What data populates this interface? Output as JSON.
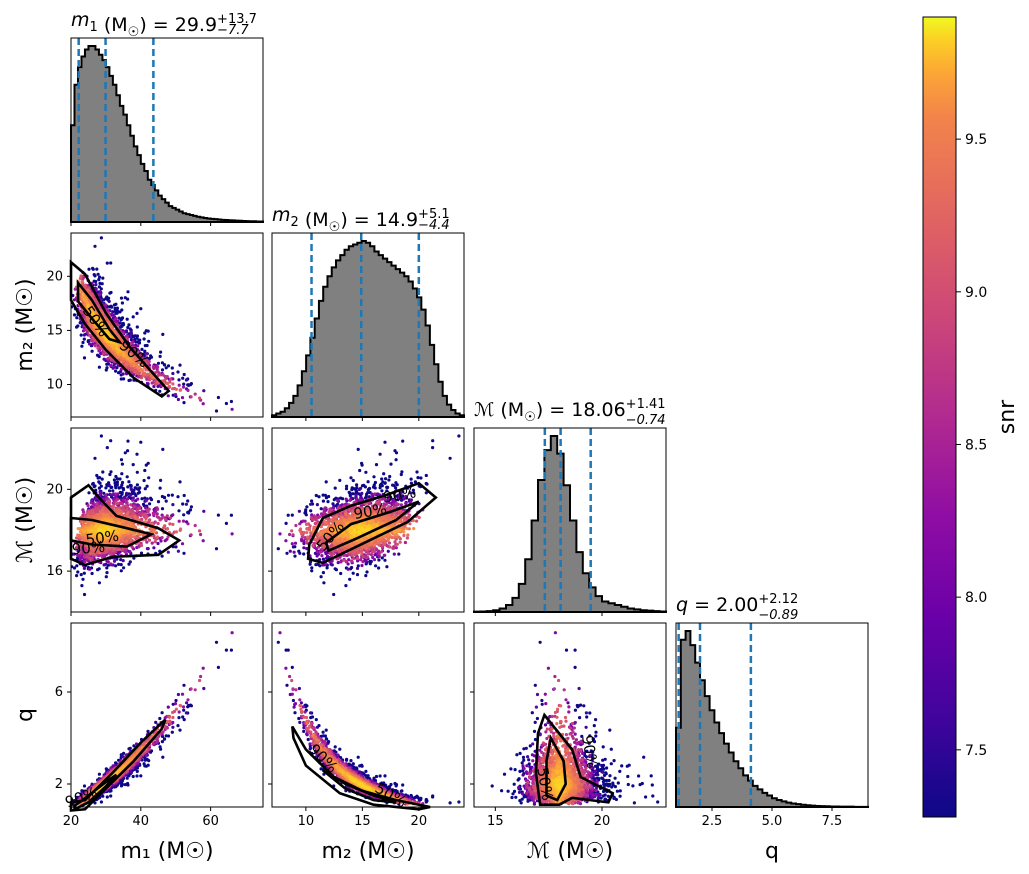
{
  "chart_data": {
    "type": "corner",
    "parameters": [
      {
        "key": "m1",
        "title_sym": "m",
        "title_sub": "1",
        "title_unit": "(M",
        "title_value": "29.9",
        "title_up": "+13.7",
        "title_lo": "−7.7",
        "axis_label": "m₁ (M☉)",
        "range": [
          20,
          75
        ],
        "ticks": [
          {
            "v": 20,
            "t": "20"
          },
          {
            "v": 40,
            "t": "40"
          },
          {
            "v": 60,
            "t": "60"
          }
        ],
        "quantiles": [
          22.2,
          29.9,
          43.6
        ]
      },
      {
        "key": "m2",
        "title_sym": "m",
        "title_sub": "2",
        "title_unit": "(M",
        "title_value": "14.9",
        "title_up": "+5.1",
        "title_lo": "−4.4",
        "axis_label": "m₂ (M☉)",
        "range": [
          7,
          24
        ],
        "ticks": [
          {
            "v": 10,
            "t": "10"
          },
          {
            "v": 15,
            "t": "15"
          },
          {
            "v": 20,
            "t": "20"
          }
        ],
        "quantiles": [
          10.5,
          14.9,
          20.0
        ]
      },
      {
        "key": "mc",
        "title_sym": "ℳ",
        "title_sub": "",
        "title_unit": "(M",
        "title_value": "18.06",
        "title_up": "+1.41",
        "title_lo": "−0.74",
        "axis_label": "ℳ (M☉)",
        "range": [
          14,
          23
        ],
        "ticks": [
          {
            "v": 16,
            "t": "16"
          },
          {
            "v": 20,
            "t": "20"
          }
        ],
        "xticks": [
          {
            "v": 15,
            "t": "15"
          },
          {
            "v": 20,
            "t": "20"
          }
        ],
        "quantiles": [
          17.32,
          18.06,
          19.47
        ]
      },
      {
        "key": "q",
        "title_sym": "q",
        "title_sub": "",
        "title_unit": "",
        "title_value": "2.00",
        "title_up": "+2.12",
        "title_lo": "−0.89",
        "axis_label": "q",
        "range": [
          1,
          9
        ],
        "ticks": [
          {
            "v": 2,
            "t": "2"
          },
          {
            "v": 6,
            "t": "6"
          }
        ],
        "xticks": [
          {
            "v": 2.5,
            "t": "2.5"
          },
          {
            "v": 5.0,
            "t": "5.0"
          },
          {
            "v": 7.5,
            "t": "7.5"
          }
        ],
        "quantiles": [
          1.11,
          2.0,
          4.12
        ]
      }
    ],
    "histograms": {
      "m1": {
        "edges": [
          20,
          75
        ],
        "counts": [
          0.55,
          0.78,
          0.88,
          0.94,
          0.98,
          1.0,
          1.0,
          0.98,
          0.95,
          0.92,
          0.88,
          0.83,
          0.78,
          0.72,
          0.66,
          0.61,
          0.55,
          0.49,
          0.43,
          0.38,
          0.33,
          0.29,
          0.24,
          0.21,
          0.18,
          0.15,
          0.13,
          0.11,
          0.09,
          0.08,
          0.07,
          0.06,
          0.05,
          0.045,
          0.04,
          0.035,
          0.03,
          0.026,
          0.023,
          0.02,
          0.018,
          0.016,
          0.014,
          0.012,
          0.011,
          0.01,
          0.009,
          0.008,
          0.007,
          0.006,
          0.005,
          0.004,
          0.004,
          0.003,
          0.003
        ]
      },
      "m2": {
        "edges": [
          7,
          24
        ],
        "counts": [
          0.01,
          0.02,
          0.03,
          0.05,
          0.08,
          0.12,
          0.18,
          0.26,
          0.35,
          0.45,
          0.56,
          0.66,
          0.74,
          0.8,
          0.85,
          0.89,
          0.92,
          0.95,
          0.97,
          0.98,
          0.99,
          1.0,
          0.99,
          0.97,
          0.94,
          0.92,
          0.9,
          0.88,
          0.86,
          0.84,
          0.82,
          0.8,
          0.77,
          0.73,
          0.68,
          0.61,
          0.52,
          0.41,
          0.3,
          0.2,
          0.12,
          0.07,
          0.04,
          0.02,
          0.01
        ]
      },
      "mc": {
        "edges": [
          14,
          23
        ],
        "counts": [
          0.002,
          0.003,
          0.005,
          0.01,
          0.02,
          0.04,
          0.08,
          0.16,
          0.3,
          0.52,
          0.75,
          0.92,
          1.0,
          0.9,
          0.72,
          0.52,
          0.34,
          0.22,
          0.14,
          0.09,
          0.06,
          0.05,
          0.04,
          0.03,
          0.02,
          0.015,
          0.01,
          0.008,
          0.005,
          0.003
        ]
      },
      "q": {
        "edges": [
          1,
          9
        ],
        "counts": [
          0.45,
          0.95,
          1.0,
          0.92,
          0.82,
          0.72,
          0.63,
          0.55,
          0.48,
          0.42,
          0.36,
          0.31,
          0.26,
          0.22,
          0.18,
          0.15,
          0.12,
          0.1,
          0.08,
          0.065,
          0.05,
          0.04,
          0.032,
          0.025,
          0.02,
          0.016,
          0.013,
          0.01,
          0.008,
          0.006,
          0.005,
          0.004,
          0.003,
          0.003,
          0.002,
          0.002,
          0.002,
          0.001,
          0.001,
          0.001
        ]
      }
    },
    "contour_levels": [
      "50%",
      "90%"
    ],
    "colorbar": {
      "label": "snr",
      "cmap": "plasma",
      "range": [
        7.28,
        9.9
      ],
      "ticks": [
        {
          "v": 7.5,
          "t": "7.5"
        },
        {
          "v": 8.0,
          "t": "8.0"
        },
        {
          "v": 8.5,
          "t": "8.5"
        },
        {
          "v": 9.0,
          "t": "9.0"
        },
        {
          "v": 9.5,
          "t": "9.5"
        }
      ]
    },
    "colors": {
      "hist_fill": "#808080",
      "hist_edge": "#000000",
      "quantile_line": "#1f77b4",
      "contour": "#000000"
    }
  }
}
